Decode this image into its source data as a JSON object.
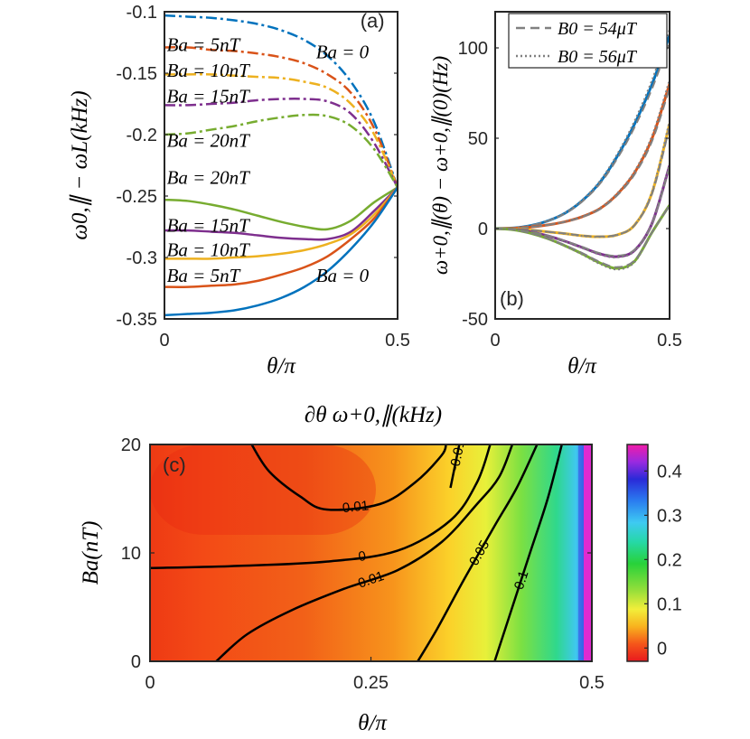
{
  "figure_title": "∂θ ω+0,∥(kHz)",
  "colors": {
    "blue": "#0072bd",
    "orange": "#d95319",
    "yellow": "#edb120",
    "purple": "#7e2f8e",
    "green": "#77ac30",
    "gray": "#808080"
  },
  "chart_data": [
    {
      "panel": "(a)",
      "type": "line",
      "xlabel": "θ/π",
      "ylabel": "ω0,∥ − ωL(kHz)",
      "xlim": [
        0,
        0.5
      ],
      "ylim": [
        -0.35,
        -0.1
      ],
      "xticks": [
        "0",
        "0.5"
      ],
      "yticks": [
        "-0.1",
        "-0.15",
        "-0.2",
        "-0.25",
        "-0.3",
        "-0.35"
      ],
      "x": [
        0,
        0.05,
        0.1,
        0.15,
        0.2,
        0.25,
        0.3,
        0.35,
        0.4,
        0.45,
        0.5
      ],
      "series": [
        {
          "name": "Ba = 0 (dash-dot)",
          "color": "blue",
          "style": "dashdot",
          "values": [
            -0.103,
            -0.104,
            -0.105,
            -0.107,
            -0.11,
            -0.115,
            -0.123,
            -0.136,
            -0.157,
            -0.19,
            -0.243
          ]
        },
        {
          "name": "Ba = 5nT (dash-dot)",
          "color": "orange",
          "style": "dashdot",
          "values": [
            -0.129,
            -0.129,
            -0.131,
            -0.132,
            -0.134,
            -0.137,
            -0.142,
            -0.151,
            -0.166,
            -0.195,
            -0.243
          ]
        },
        {
          "name": "Ba = 10nT (dash-dot)",
          "color": "yellow",
          "style": "dashdot",
          "values": [
            -0.151,
            -0.151,
            -0.151,
            -0.152,
            -0.153,
            -0.154,
            -0.157,
            -0.162,
            -0.175,
            -0.2,
            -0.243
          ]
        },
        {
          "name": "Ba = 15nT (dash-dot)",
          "color": "purple",
          "style": "dashdot",
          "values": [
            -0.176,
            -0.176,
            -0.175,
            -0.174,
            -0.172,
            -0.171,
            -0.171,
            -0.173,
            -0.183,
            -0.207,
            -0.243
          ]
        },
        {
          "name": "Ba = 20nT (dash-dot)",
          "color": "green",
          "style": "dashdot",
          "values": [
            -0.2,
            -0.199,
            -0.196,
            -0.193,
            -0.189,
            -0.186,
            -0.184,
            -0.185,
            -0.193,
            -0.212,
            -0.243
          ]
        },
        {
          "name": "Ba = 20nT",
          "color": "green",
          "style": "solid",
          "values": [
            -0.253,
            -0.254,
            -0.257,
            -0.261,
            -0.266,
            -0.271,
            -0.275,
            -0.277,
            -0.27,
            -0.255,
            -0.243
          ]
        },
        {
          "name": "Ba = 15nT",
          "color": "purple",
          "style": "solid",
          "values": [
            -0.278,
            -0.278,
            -0.279,
            -0.28,
            -0.282,
            -0.284,
            -0.285,
            -0.285,
            -0.279,
            -0.262,
            -0.243
          ]
        },
        {
          "name": "Ba = 10nT",
          "color": "yellow",
          "style": "solid",
          "values": [
            -0.301,
            -0.301,
            -0.301,
            -0.3,
            -0.299,
            -0.297,
            -0.294,
            -0.289,
            -0.281,
            -0.265,
            -0.243
          ]
        },
        {
          "name": "Ba = 5nT",
          "color": "orange",
          "style": "solid",
          "values": [
            -0.324,
            -0.324,
            -0.323,
            -0.322,
            -0.319,
            -0.314,
            -0.308,
            -0.299,
            -0.285,
            -0.268,
            -0.243
          ]
        },
        {
          "name": "Ba = 0",
          "color": "blue",
          "style": "solid",
          "values": [
            -0.347,
            -0.346,
            -0.345,
            -0.343,
            -0.339,
            -0.333,
            -0.324,
            -0.311,
            -0.293,
            -0.271,
            -0.243
          ]
        }
      ],
      "annotations": [
        {
          "text": "Ba = 5nT",
          "x": 0.005,
          "y": -0.132
        },
        {
          "text": "Ba = 10nT",
          "x": 0.005,
          "y": -0.153
        },
        {
          "text": "Ba = 15nT",
          "x": 0.005,
          "y": -0.174
        },
        {
          "text": "Ba = 20nT",
          "x": 0.005,
          "y": -0.21
        },
        {
          "text": "Ba = 20nT",
          "x": 0.005,
          "y": -0.24
        },
        {
          "text": "Ba = 15nT",
          "x": 0.005,
          "y": -0.279
        },
        {
          "text": "Ba = 10nT",
          "x": 0.005,
          "y": -0.299
        },
        {
          "text": "Ba = 5nT",
          "x": 0.005,
          "y": -0.32
        },
        {
          "text": "Ba = 0",
          "x": 0.325,
          "y": -0.138
        },
        {
          "text": "Ba = 0",
          "x": 0.325,
          "y": -0.32
        },
        {
          "text": "(a)",
          "x": 0.42,
          "y": -0.113
        }
      ]
    },
    {
      "panel": "(b)",
      "type": "line",
      "xlabel": "θ/π",
      "ylabel": "ω+0,∥(θ) − ω+0,∥(0)(Hz)",
      "xlim": [
        0,
        0.5
      ],
      "ylim": [
        -50,
        120
      ],
      "xticks": [
        "0",
        "0.5"
      ],
      "yticks": [
        "100",
        "50",
        "0",
        "-50"
      ],
      "legend": {
        "placement": "top-right",
        "entries": [
          {
            "label": "B0 = 54μT",
            "style": "dashed"
          },
          {
            "label": "B0 = 56μT",
            "style": "dotted"
          }
        ]
      },
      "x": [
        0,
        0.05,
        0.1,
        0.15,
        0.2,
        0.25,
        0.3,
        0.35,
        0.4,
        0.45,
        0.5
      ],
      "series": [
        {
          "name": "Ba = 0",
          "color": "blue",
          "values": [
            0,
            0.3,
            1.6,
            4.2,
            8.5,
            15.5,
            25.5,
            40,
            58,
            80,
            107
          ]
        },
        {
          "name": "Ba = 5nT",
          "color": "orange",
          "values": [
            0,
            0.2,
            0.8,
            2,
            3.8,
            6.6,
            11,
            19,
            31,
            50,
            80
          ]
        },
        {
          "name": "Ba = 10nT",
          "color": "yellow",
          "values": [
            0,
            -0.2,
            -0.8,
            -1.8,
            -2.8,
            -4,
            -4.5,
            -3.5,
            2,
            20,
            58
          ]
        },
        {
          "name": "Ba = 15nT",
          "color": "purple",
          "values": [
            0,
            -0.4,
            -1.8,
            -4,
            -7,
            -10.5,
            -14,
            -15.5,
            -12,
            3,
            35
          ]
        },
        {
          "name": "Ba = 20nT",
          "color": "green",
          "values": [
            0,
            -0.6,
            -2.5,
            -5.5,
            -9.5,
            -14,
            -19,
            -22,
            -18,
            -2,
            13
          ]
        }
      ],
      "annotations": [
        {
          "text": "(b)",
          "x": 0.025,
          "y": -38
        }
      ]
    },
    {
      "panel": "(c)",
      "type": "heatmap",
      "title": "∂θ ω+0,∥(kHz)",
      "xlabel": "θ/π",
      "ylabel": "Ba(nT)",
      "xlim": [
        0,
        0.5
      ],
      "ylim": [
        0,
        20
      ],
      "xticks": [
        "0",
        "0.25",
        "0.5"
      ],
      "yticks": [
        "20",
        "10",
        "0"
      ],
      "colorbar": {
        "range": [
          -0.03,
          0.46
        ],
        "ticks": [
          "0.4",
          "0.3",
          "0.2",
          "0.1",
          "0"
        ]
      },
      "contours": [
        {
          "label": "-0.01",
          "points": [
            [
              0.115,
              20
            ],
            [
              0.135,
              17.5
            ],
            [
              0.17,
              15.2
            ],
            [
              0.2,
              14
            ],
            [
              0.26,
              14.5
            ],
            [
              0.3,
              16.5
            ],
            [
              0.33,
              19
            ],
            [
              0.335,
              20
            ]
          ]
        },
        {
          "label": "-0.01",
          "points": [
            [
              0.35,
              20
            ],
            [
              0.345,
              18
            ],
            [
              0.34,
              16
            ]
          ]
        },
        {
          "label": "0",
          "points": [
            [
              0,
              8.6
            ],
            [
              0.1,
              8.8
            ],
            [
              0.2,
              9.2
            ],
            [
              0.28,
              10.2
            ],
            [
              0.34,
              13
            ],
            [
              0.37,
              16.5
            ],
            [
              0.385,
              20
            ]
          ]
        },
        {
          "label": "0.01",
          "points": [
            [
              0.075,
              0
            ],
            [
              0.11,
              2.5
            ],
            [
              0.16,
              4.7
            ],
            [
              0.22,
              6.7
            ],
            [
              0.28,
              8.4
            ],
            [
              0.33,
              11
            ],
            [
              0.37,
              14.5
            ],
            [
              0.395,
              17
            ],
            [
              0.41,
              20
            ]
          ]
        },
        {
          "label": "0.05",
          "points": [
            [
              0.303,
              0
            ],
            [
              0.325,
              3
            ],
            [
              0.355,
              7.5
            ],
            [
              0.39,
              12.5
            ],
            [
              0.415,
              16
            ],
            [
              0.438,
              20
            ]
          ]
        },
        {
          "label": "0.1",
          "points": [
            [
              0.39,
              0
            ],
            [
              0.41,
              5
            ],
            [
              0.43,
              10
            ],
            [
              0.45,
              15
            ],
            [
              0.466,
              20
            ]
          ]
        }
      ],
      "annotations": [
        {
          "text": "(c)",
          "x": 0.015,
          "y": 18.5
        }
      ]
    }
  ],
  "labels": {
    "panel_a": "(a)",
    "panel_b": "(b)",
    "panel_c": "(c)",
    "legend_54": "B0 = 54μT",
    "legend_56": "B0 = 56μT"
  }
}
